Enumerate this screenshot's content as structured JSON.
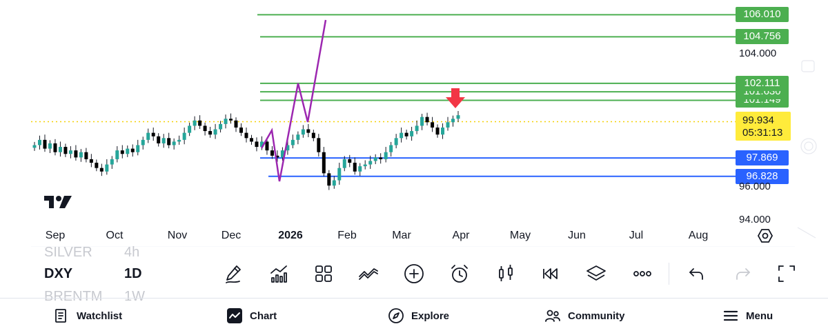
{
  "chart": {
    "y_scale": {
      "top_price": 106.3,
      "bottom_price": 93.8
    },
    "current_price_line": 99.934,
    "resistance_levels": [
      {
        "price": 106.01,
        "label": "106.010",
        "color": "#4caf50"
      },
      {
        "price": 104.756,
        "label": "104.756",
        "color": "#4caf50"
      },
      {
        "price": 102.111,
        "label": "102.111",
        "color": "#4caf50"
      },
      {
        "price": 101.63,
        "label": "101.630",
        "color": "#4caf50"
      },
      {
        "price": 101.149,
        "label": "101.149",
        "color": "#4caf50"
      }
    ],
    "support_levels": [
      {
        "price": 97.869,
        "label": "97.869",
        "color": "#2962ff"
      },
      {
        "price": 96.828,
        "label": "96.828",
        "color": "#2962ff"
      }
    ],
    "axis_prices": [
      "104.000",
      "96.000",
      "94.000"
    ],
    "current": {
      "price": "99.934",
      "countdown": "05:31:13",
      "color": "#ffeb3b"
    },
    "months": [
      {
        "label": "Sep",
        "bold": false
      },
      {
        "label": "Oct",
        "bold": false
      },
      {
        "label": "Nov",
        "bold": false
      },
      {
        "label": "Dec",
        "bold": false
      },
      {
        "label": "2026",
        "bold": true
      },
      {
        "label": "Feb",
        "bold": false
      },
      {
        "label": "Mar",
        "bold": false
      },
      {
        "label": "Apr",
        "bold": false
      },
      {
        "label": "May",
        "bold": false
      },
      {
        "label": "Jun",
        "bold": false
      },
      {
        "label": "Jul",
        "bold": false
      },
      {
        "label": "Aug",
        "bold": false
      }
    ],
    "series_closes": [
      98.6,
      98.9,
      98.4,
      98.7,
      98.2,
      98.5,
      98.1,
      98.3,
      97.9,
      98.2,
      97.8,
      97.6,
      97.3,
      97.1,
      97.5,
      97.8,
      98.3,
      98.1,
      98.4,
      98.2,
      98.6,
      98.9,
      99.3,
      99.1,
      98.7,
      99.0,
      98.6,
      98.8,
      98.9,
      99.3,
      99.7,
      100.0,
      99.7,
      99.4,
      99.2,
      99.5,
      99.8,
      100.1,
      100.0,
      99.6,
      99.3,
      99.0,
      98.8,
      98.5,
      98.8,
      98.3,
      98.0,
      97.9,
      98.3,
      98.6,
      98.9,
      99.2,
      99.5,
      99.3,
      99.0,
      98.2,
      97.0,
      96.3,
      96.6,
      97.3,
      97.8,
      97.6,
      97.1,
      97.4,
      97.5,
      97.7,
      97.9,
      97.8,
      98.2,
      98.6,
      99.0,
      99.3,
      99.1,
      99.4,
      99.7,
      100.2,
      99.9,
      99.6,
      99.2,
      99.6,
      99.9,
      100.1,
      100.3
    ],
    "purple_line_points": [
      [
        379,
        215
      ],
      [
        394,
        189
      ],
      [
        405,
        263
      ],
      [
        432,
        121
      ],
      [
        446,
        177
      ],
      [
        472,
        29
      ]
    ],
    "purple_line_color": "#9c27b0",
    "arrow_color": "#f23645",
    "bull_color": "#26a69a",
    "bear_color": "#000000"
  },
  "toolbar": {
    "symbols": {
      "top": {
        "name": "SILVER",
        "interval": "4h"
      },
      "main": {
        "name": "DXY",
        "interval": "1D"
      },
      "bottom": {
        "name": "BRENTM",
        "interval": "1W"
      }
    }
  },
  "nav": {
    "watchlist": "Watchlist",
    "chart": "Chart",
    "explore": "Explore",
    "community": "Community",
    "menu": "Menu"
  },
  "icons": {
    "draw": "pencil-icon",
    "indicators": "indicators-icon",
    "layouts": "grid-icon",
    "compare": "compare-icon",
    "add": "plus-circle-icon",
    "alert": "alarm-icon",
    "chart_type": "candles-icon",
    "replay": "replay-icon",
    "layers": "layers-icon",
    "more": "more-icon",
    "undo": "undo-icon",
    "redo": "redo-icon",
    "fullscreen": "fullscreen-icon"
  }
}
